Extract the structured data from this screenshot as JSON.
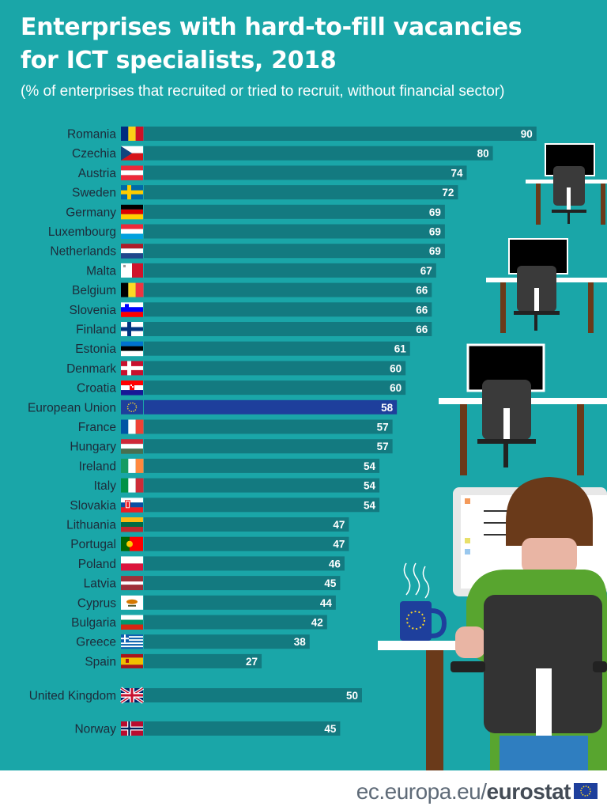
{
  "title_line1": "Enterprises with hard-to-fill vacancies",
  "title_line2": "for ICT specialists, 2018",
  "subtitle": "(% of enterprises that recruited or tried to recruit, without financial sector)",
  "footer": {
    "site": "ec.europa.eu/",
    "brand": "eurostat",
    "logo_icon": "eu-flag-icon"
  },
  "colors": {
    "background": "#1aa6a8",
    "bar": "#137a80",
    "eu_bar": "#1e3f9c",
    "text": "#ffffff",
    "label": "#1d2b3a"
  },
  "illustration_icons": [
    "office-desk-icon",
    "monitor-icon",
    "office-chair-icon",
    "person-at-computer-icon",
    "eu-coffee-mug-icon"
  ],
  "chart_data": {
    "type": "bar",
    "orientation": "horizontal",
    "unit": "%",
    "xlim": [
      0,
      100
    ],
    "data_labels": true,
    "categories": [
      "Romania",
      "Czechia",
      "Austria",
      "Sweden",
      "Germany",
      "Luxembourg",
      "Netherlands",
      "Malta",
      "Belgium",
      "Slovenia",
      "Finland",
      "Estonia",
      "Denmark",
      "Croatia",
      "European Union",
      "France",
      "Hungary",
      "Ireland",
      "Italy",
      "Slovakia",
      "Lithuania",
      "Portugal",
      "Poland",
      "Latvia",
      "Cyprus",
      "Bulgaria",
      "Greece",
      "Spain",
      "United Kingdom",
      "Norway"
    ],
    "values": [
      90,
      80,
      74,
      72,
      69,
      69,
      69,
      67,
      66,
      66,
      66,
      61,
      60,
      60,
      58,
      57,
      57,
      54,
      54,
      54,
      47,
      47,
      46,
      45,
      44,
      42,
      38,
      27,
      50,
      45
    ],
    "highlight": "European Union",
    "flags": [
      "romania-flag-icon",
      "czechia-flag-icon",
      "austria-flag-icon",
      "sweden-flag-icon",
      "germany-flag-icon",
      "luxembourg-flag-icon",
      "netherlands-flag-icon",
      "malta-flag-icon",
      "belgium-flag-icon",
      "slovenia-flag-icon",
      "finland-flag-icon",
      "estonia-flag-icon",
      "denmark-flag-icon",
      "croatia-flag-icon",
      "eu-flag-icon",
      "france-flag-icon",
      "hungary-flag-icon",
      "ireland-flag-icon",
      "italy-flag-icon",
      "slovakia-flag-icon",
      "lithuania-flag-icon",
      "portugal-flag-icon",
      "poland-flag-icon",
      "latvia-flag-icon",
      "cyprus-flag-icon",
      "bulgaria-flag-icon",
      "greece-flag-icon",
      "spain-flag-icon",
      "united-kingdom-flag-icon",
      "norway-flag-icon"
    ]
  }
}
